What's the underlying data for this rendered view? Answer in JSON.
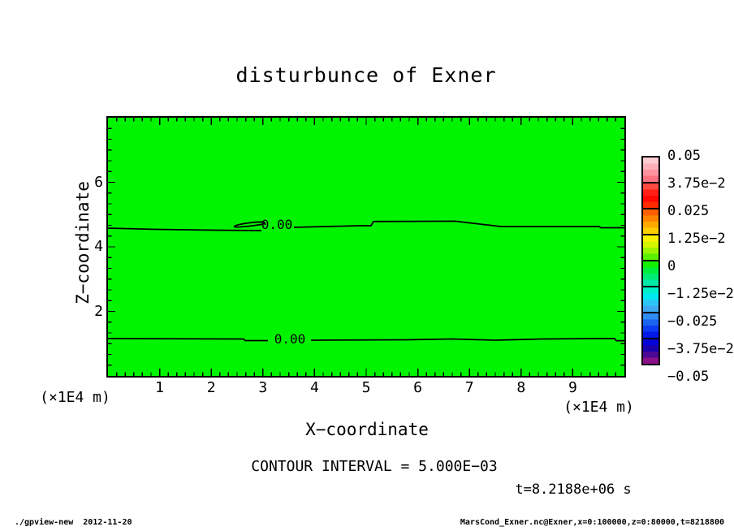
{
  "title": "disturbunce of Exner",
  "plot": {
    "fill_color": "#00F400",
    "frame_color": "#000000",
    "x_axis": {
      "title": "X−coordinate",
      "unit": "(×1E4 m)",
      "tick_labels": [
        "1",
        "2",
        "3",
        "4",
        "5",
        "6",
        "7",
        "8",
        "9"
      ],
      "tick_values": [
        1,
        2,
        3,
        4,
        5,
        6,
        7,
        8,
        9
      ]
    },
    "y_axis": {
      "title": "Z−coordinate",
      "unit": "(×1E4 m)",
      "tick_labels": [
        "2",
        "4",
        "6"
      ],
      "tick_values": [
        2,
        4,
        6
      ]
    },
    "contour_labels": [
      "0.00",
      "0.00"
    ]
  },
  "colorbar": {
    "tick_labels": [
      "0.05",
      "3.75e−2",
      "0.025",
      "1.25e−2",
      "0",
      "−1.25e−2",
      "−0.025",
      "−3.75e−2",
      "−0.05"
    ],
    "boxes": [
      [
        "#ffccd2",
        "#ffb0ba",
        "#ff929f",
        "#ff7280"
      ],
      [
        "#ff4a42",
        "#ff1f16",
        "#ff0800",
        "#ff2a00"
      ],
      [
        "#ff5f00",
        "#ff8400",
        "#ffa900",
        "#ffce00"
      ],
      [
        "#fff200",
        "#d4f700",
        "#9cf400",
        "#5af200"
      ],
      [
        "#12f000",
        "#00ee3c",
        "#00ec74",
        "#00e9a6"
      ],
      [
        "#00f0cc",
        "#00e9ef",
        "#2cc6f6",
        "#3ea8f2"
      ],
      [
        "#2f8cf4",
        "#1a64f0",
        "#0c3cf0",
        "#0418e8"
      ],
      [
        "#0505d8",
        "#1a02ad",
        "#4d0895",
        "#8c0f8a"
      ]
    ]
  },
  "annotations": {
    "contour_interval": "CONTOUR INTERVAL = 5.000E−03",
    "time": "t=8.2188e+06 s"
  },
  "footer": {
    "left": "./gpview-new  2012-11-20",
    "right": "MarsCond_Exner.nc@Exner,x=0:100000,z=0:80000,t=8218800"
  },
  "chart_data": {
    "type": "heatmap",
    "subtype": "filled-contour-2d",
    "title": "disturbunce of Exner",
    "xlabel": "X−coordinate (×1E4 m)",
    "ylabel": "Z−coordinate (×1E4 m)",
    "xlim": [
      0,
      10
    ],
    "ylim": [
      0,
      8
    ],
    "x_ticks": [
      1,
      2,
      3,
      4,
      5,
      6,
      7,
      8,
      9
    ],
    "y_ticks": [
      2,
      4,
      6
    ],
    "grid": false,
    "legend_position": "right-colorbar",
    "contour_interval": 0.005,
    "colorbar_range": [
      -0.05,
      0.05
    ],
    "colorbar_tick_values": [
      0.05,
      0.0375,
      0.025,
      0.0125,
      0,
      -0.0125,
      -0.025,
      -0.0375,
      -0.05
    ],
    "field_note": "entire displayed field lies within the 0±0.005 tone level (uniform bright green); only two zero-level contour lines are visible",
    "contour_lines": [
      {
        "level": 0.0,
        "label": "0.00",
        "x": [
          0,
          2.1,
          3.0,
          3.6,
          4.9,
          5.1,
          5.15,
          6.7,
          7.6,
          9.5,
          9.56,
          10
        ],
        "z": [
          4.58,
          4.53,
          4.5,
          4.6,
          4.65,
          4.65,
          4.78,
          4.79,
          4.63,
          4.63,
          4.59,
          4.59
        ],
        "closed_loop_near": {
          "x": [
            2.45,
            3.03
          ],
          "z": [
            4.58,
            4.68
          ]
        }
      },
      {
        "level": 0.0,
        "label": "0.00",
        "x": [
          0,
          2.6,
          2.67,
          3.1,
          3.9,
          5.8,
          6.7,
          7.5,
          9.4,
          9.85,
          10
        ],
        "z": [
          1.16,
          1.14,
          1.09,
          1.09,
          1.11,
          1.12,
          1.14,
          1.16,
          1.16,
          1.09,
          1.09
        ]
      }
    ]
  }
}
